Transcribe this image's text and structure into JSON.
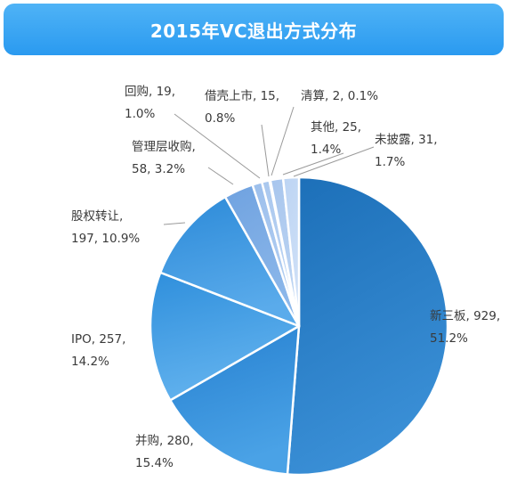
{
  "title": "2015年VC退出方式分布",
  "chart_data": {
    "type": "pie",
    "title": "2015年VC退出方式分布",
    "slices": [
      {
        "name": "新三板",
        "value": 929,
        "percent": "51.2%",
        "color": "#1c6fb8",
        "color_light": "#3a8fd6",
        "label_line1": "新三板, 929,",
        "label_line2": "51.2%"
      },
      {
        "name": "并购",
        "value": 280,
        "percent": "15.4%",
        "color": "#2680d0",
        "color_light": "#4aa2e6",
        "label_line1": "并购, 280,",
        "label_line2": "15.4%"
      },
      {
        "name": "IPO",
        "value": 257,
        "percent": "14.2%",
        "color": "#2f8fdc",
        "color_light": "#62b2ee",
        "label_line1": "IPO, 257,",
        "label_line2": "14.2%"
      },
      {
        "name": "股权转让",
        "value": 197,
        "percent": "10.9%",
        "color": "#2c8ad8",
        "color_light": "#5aabeb",
        "label_line1": "股权转让,",
        "label_line2": "197, 10.9%"
      },
      {
        "name": "管理层收购",
        "value": 58,
        "percent": "3.2%",
        "color": "#6fa2e0",
        "color_light": "#8db8ea",
        "label_line1": "管理层收购,",
        "label_line2": "58, 3.2%"
      },
      {
        "name": "回购",
        "value": 19,
        "percent": "1.0%",
        "color": "#9cbfec",
        "color_light": "#b5d0f2",
        "label_line1": "回购, 19,",
        "label_line2": "1.0%"
      },
      {
        "name": "借壳上市",
        "value": 15,
        "percent": "0.8%",
        "color": "#a9c7ee",
        "color_light": "#bed6f4",
        "label_line1": "借壳上市, 15,",
        "label_line2": "0.8%"
      },
      {
        "name": "清算",
        "value": 2,
        "percent": "0.1%",
        "color": "#b2cdf0",
        "color_light": "#c6dbf5",
        "label_line1": "清算, 2, 0.1%",
        "label_line2": ""
      },
      {
        "name": "其他",
        "value": 25,
        "percent": "1.4%",
        "color": "#a7c5ed",
        "color_light": "#bdd5f3",
        "label_line1": "其他, 25,",
        "label_line2": "1.4%"
      },
      {
        "name": "未披露",
        "value": 31,
        "percent": "1.7%",
        "color": "#bcd4f3",
        "color_light": "#cfe0f7",
        "label_line1": "未披露, 31,",
        "label_line2": "1.7%"
      }
    ]
  }
}
